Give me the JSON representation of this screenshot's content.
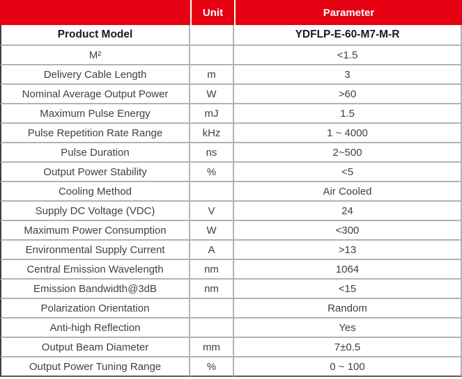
{
  "colors": {
    "header_bg": "#e60012",
    "header_text": "#ffffff",
    "body_text": "#404040",
    "grid": "#b2b2b2"
  },
  "table": {
    "header": {
      "col1": "",
      "col2": "Unit",
      "col3": "Parameter"
    },
    "rows": [
      {
        "name": "Product Model",
        "unit": "",
        "value": "YDFLP-E-60-M7-M-R"
      },
      {
        "name": "M²",
        "unit": "",
        "value": "<1.5"
      },
      {
        "name": "Delivery Cable Length",
        "unit": "m",
        "value": "3"
      },
      {
        "name": "Nominal Average Output Power",
        "unit": "W",
        "value": ">60"
      },
      {
        "name": "Maximum Pulse Energy",
        "unit": "mJ",
        "value": "1.5"
      },
      {
        "name": "Pulse Repetition Rate Range",
        "unit": "kHz",
        "value": "1 ~ 4000"
      },
      {
        "name": "Pulse Duration",
        "unit": "ns",
        "value": "2~500"
      },
      {
        "name": "Output Power Stability",
        "unit": "%",
        "value": "<5"
      },
      {
        "name": "Cooling Method",
        "unit": "",
        "value": "Air Cooled"
      },
      {
        "name": "Supply DC Voltage (VDC)",
        "unit": "V",
        "value": "24"
      },
      {
        "name": "Maximum Power Consumption",
        "unit": "W",
        "value": "<300"
      },
      {
        "name": "Environmental Supply Current",
        "unit": "A",
        "value": ">13"
      },
      {
        "name": "Central Emission Wavelength",
        "unit": "nm",
        "value": "1064"
      },
      {
        "name": "Emission Bandwidth@3dB",
        "unit": "nm",
        "value": "<15"
      },
      {
        "name": "Polarization Orientation",
        "unit": "",
        "value": "Random"
      },
      {
        "name": "Anti-high Reflection",
        "unit": "",
        "value": "Yes"
      },
      {
        "name": "Output Beam Diameter",
        "unit": "mm",
        "value": "7±0.5"
      },
      {
        "name": "Output Power Tuning Range",
        "unit": "%",
        "value": "0 ~ 100"
      }
    ]
  }
}
